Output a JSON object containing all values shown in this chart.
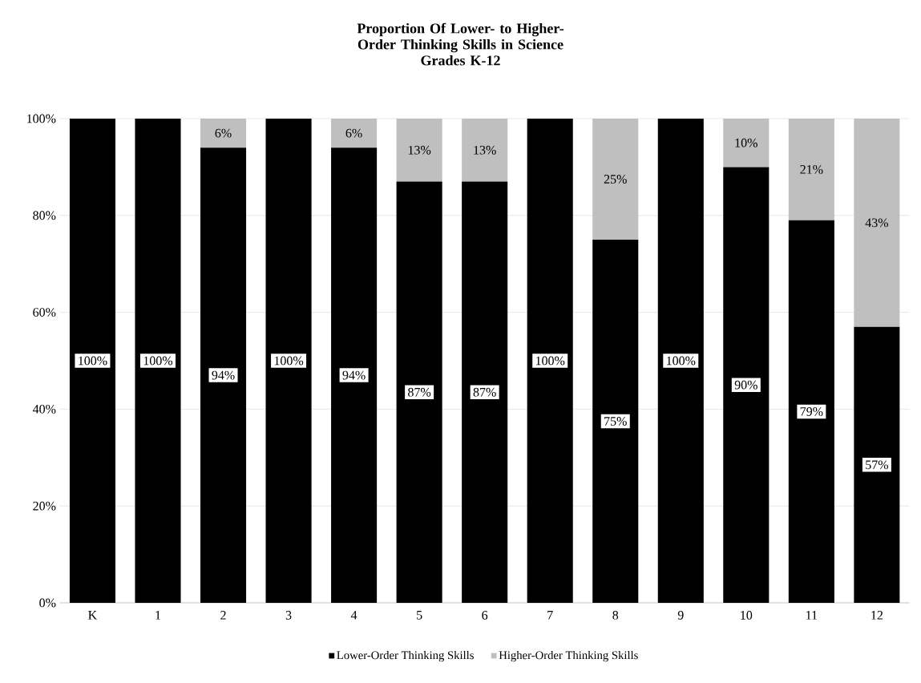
{
  "chart_data": {
    "type": "bar",
    "stacked": true,
    "title": "Proportion Of Lower- to Higher-Order Thinking Skills in Science",
    "subtitle": "Grades K-12",
    "categories": [
      "K",
      "1",
      "2",
      "3",
      "4",
      "5",
      "6",
      "7",
      "8",
      "9",
      "10",
      "11",
      "12"
    ],
    "series": [
      {
        "name": "Lower-Order Thinking Skills",
        "color": "#000000",
        "values": [
          100,
          100,
          94,
          100,
          94,
          87,
          87,
          100,
          75,
          100,
          90,
          79,
          57
        ],
        "value_labels": [
          "100%",
          "100%",
          "94%",
          "100%",
          "94%",
          "87%",
          "87%",
          "100%",
          "75%",
          "100%",
          "90%",
          "79%",
          "57%"
        ]
      },
      {
        "name": "Higher-Order Thinking Skills",
        "color": "#bfbfbf",
        "values": [
          0,
          0,
          6,
          0,
          6,
          13,
          13,
          0,
          25,
          0,
          10,
          21,
          43
        ],
        "value_labels": [
          null,
          null,
          "6%",
          null,
          "6%",
          "13%",
          "13%",
          null,
          "25%",
          null,
          "10%",
          "21%",
          "43%"
        ]
      }
    ],
    "ylim": [
      0,
      100
    ],
    "yticks": [
      {
        "value": 0,
        "label": "0%"
      },
      {
        "value": 20,
        "label": "20%"
      },
      {
        "value": 40,
        "label": "40%"
      },
      {
        "value": 60,
        "label": "60%"
      },
      {
        "value": 80,
        "label": "80%"
      },
      {
        "value": 100,
        "label": "100%"
      }
    ],
    "grid": "y",
    "legend": "bottom"
  }
}
